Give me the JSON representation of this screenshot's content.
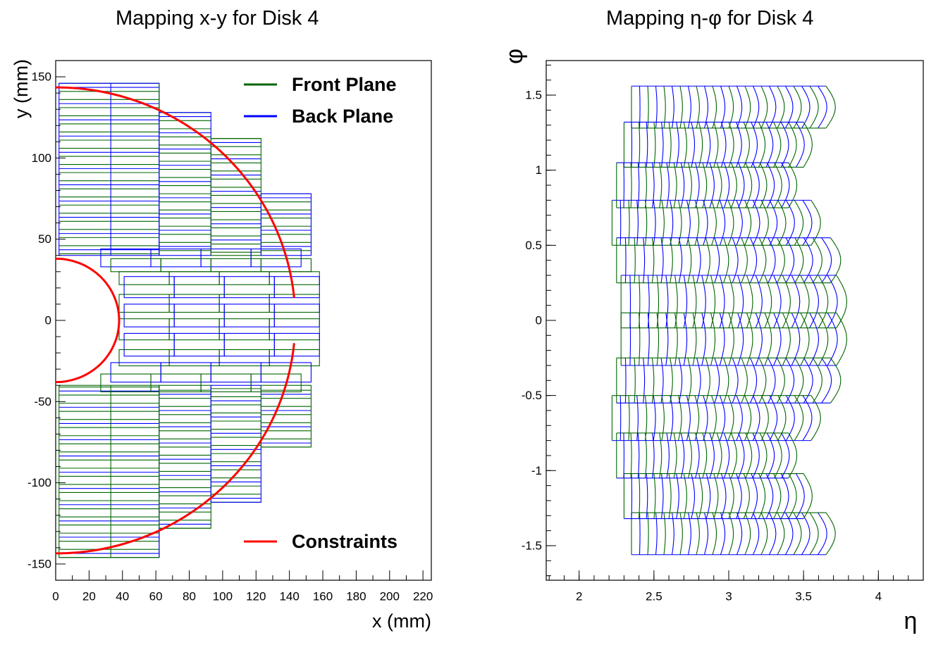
{
  "chart_data": [
    {
      "type": "line",
      "title": "Mapping x-y for Disk 4",
      "xlabel": "x (mm)",
      "ylabel": "y (mm)",
      "xlim": [
        0,
        225
      ],
      "ylim": [
        -160,
        160
      ],
      "x_ticks": [
        "0",
        "20",
        "40",
        "60",
        "80",
        "100",
        "120",
        "140",
        "160",
        "180",
        "200",
        "220"
      ],
      "y_ticks": [
        "150",
        "100",
        "50",
        "0",
        "-50",
        "-100",
        "-150"
      ],
      "grid": false,
      "legend_placement": "top-right / bottom-right",
      "legend": [
        {
          "label": "Front Plane",
          "color": "#006400"
        },
        {
          "label": "Back Plane",
          "color": "#0000ff"
        },
        {
          "label": "Constraints",
          "color": "#ff0000"
        }
      ],
      "series": [
        {
          "name": "Front Plane",
          "color": "#006400",
          "description_shape": "rectangular sensor strips"
        },
        {
          "name": "Back Plane",
          "color": "#0000ff",
          "description_shape": "rectangular sensor strips"
        },
        {
          "name": "Constraints",
          "color": "#ff0000",
          "inner_radius": 38,
          "outer_radius": 143.5
        }
      ]
    },
    {
      "type": "line",
      "title": "Mapping  η-φ for Disk 4",
      "xlabel": "η",
      "ylabel": "φ",
      "xlim": [
        1.78,
        4.3
      ],
      "ylim": [
        -1.73,
        1.73
      ],
      "x_ticks": [
        "2",
        "2.5",
        "3",
        "3.5",
        "4"
      ],
      "y_ticks": [
        "1.5",
        "1",
        "0.5",
        "0",
        "-0.5",
        "-1",
        "-1.5"
      ],
      "grid": false,
      "series": [
        {
          "name": "Front Plane",
          "color": "#006400"
        },
        {
          "name": "Back Plane",
          "color": "#0000ff"
        }
      ]
    }
  ]
}
